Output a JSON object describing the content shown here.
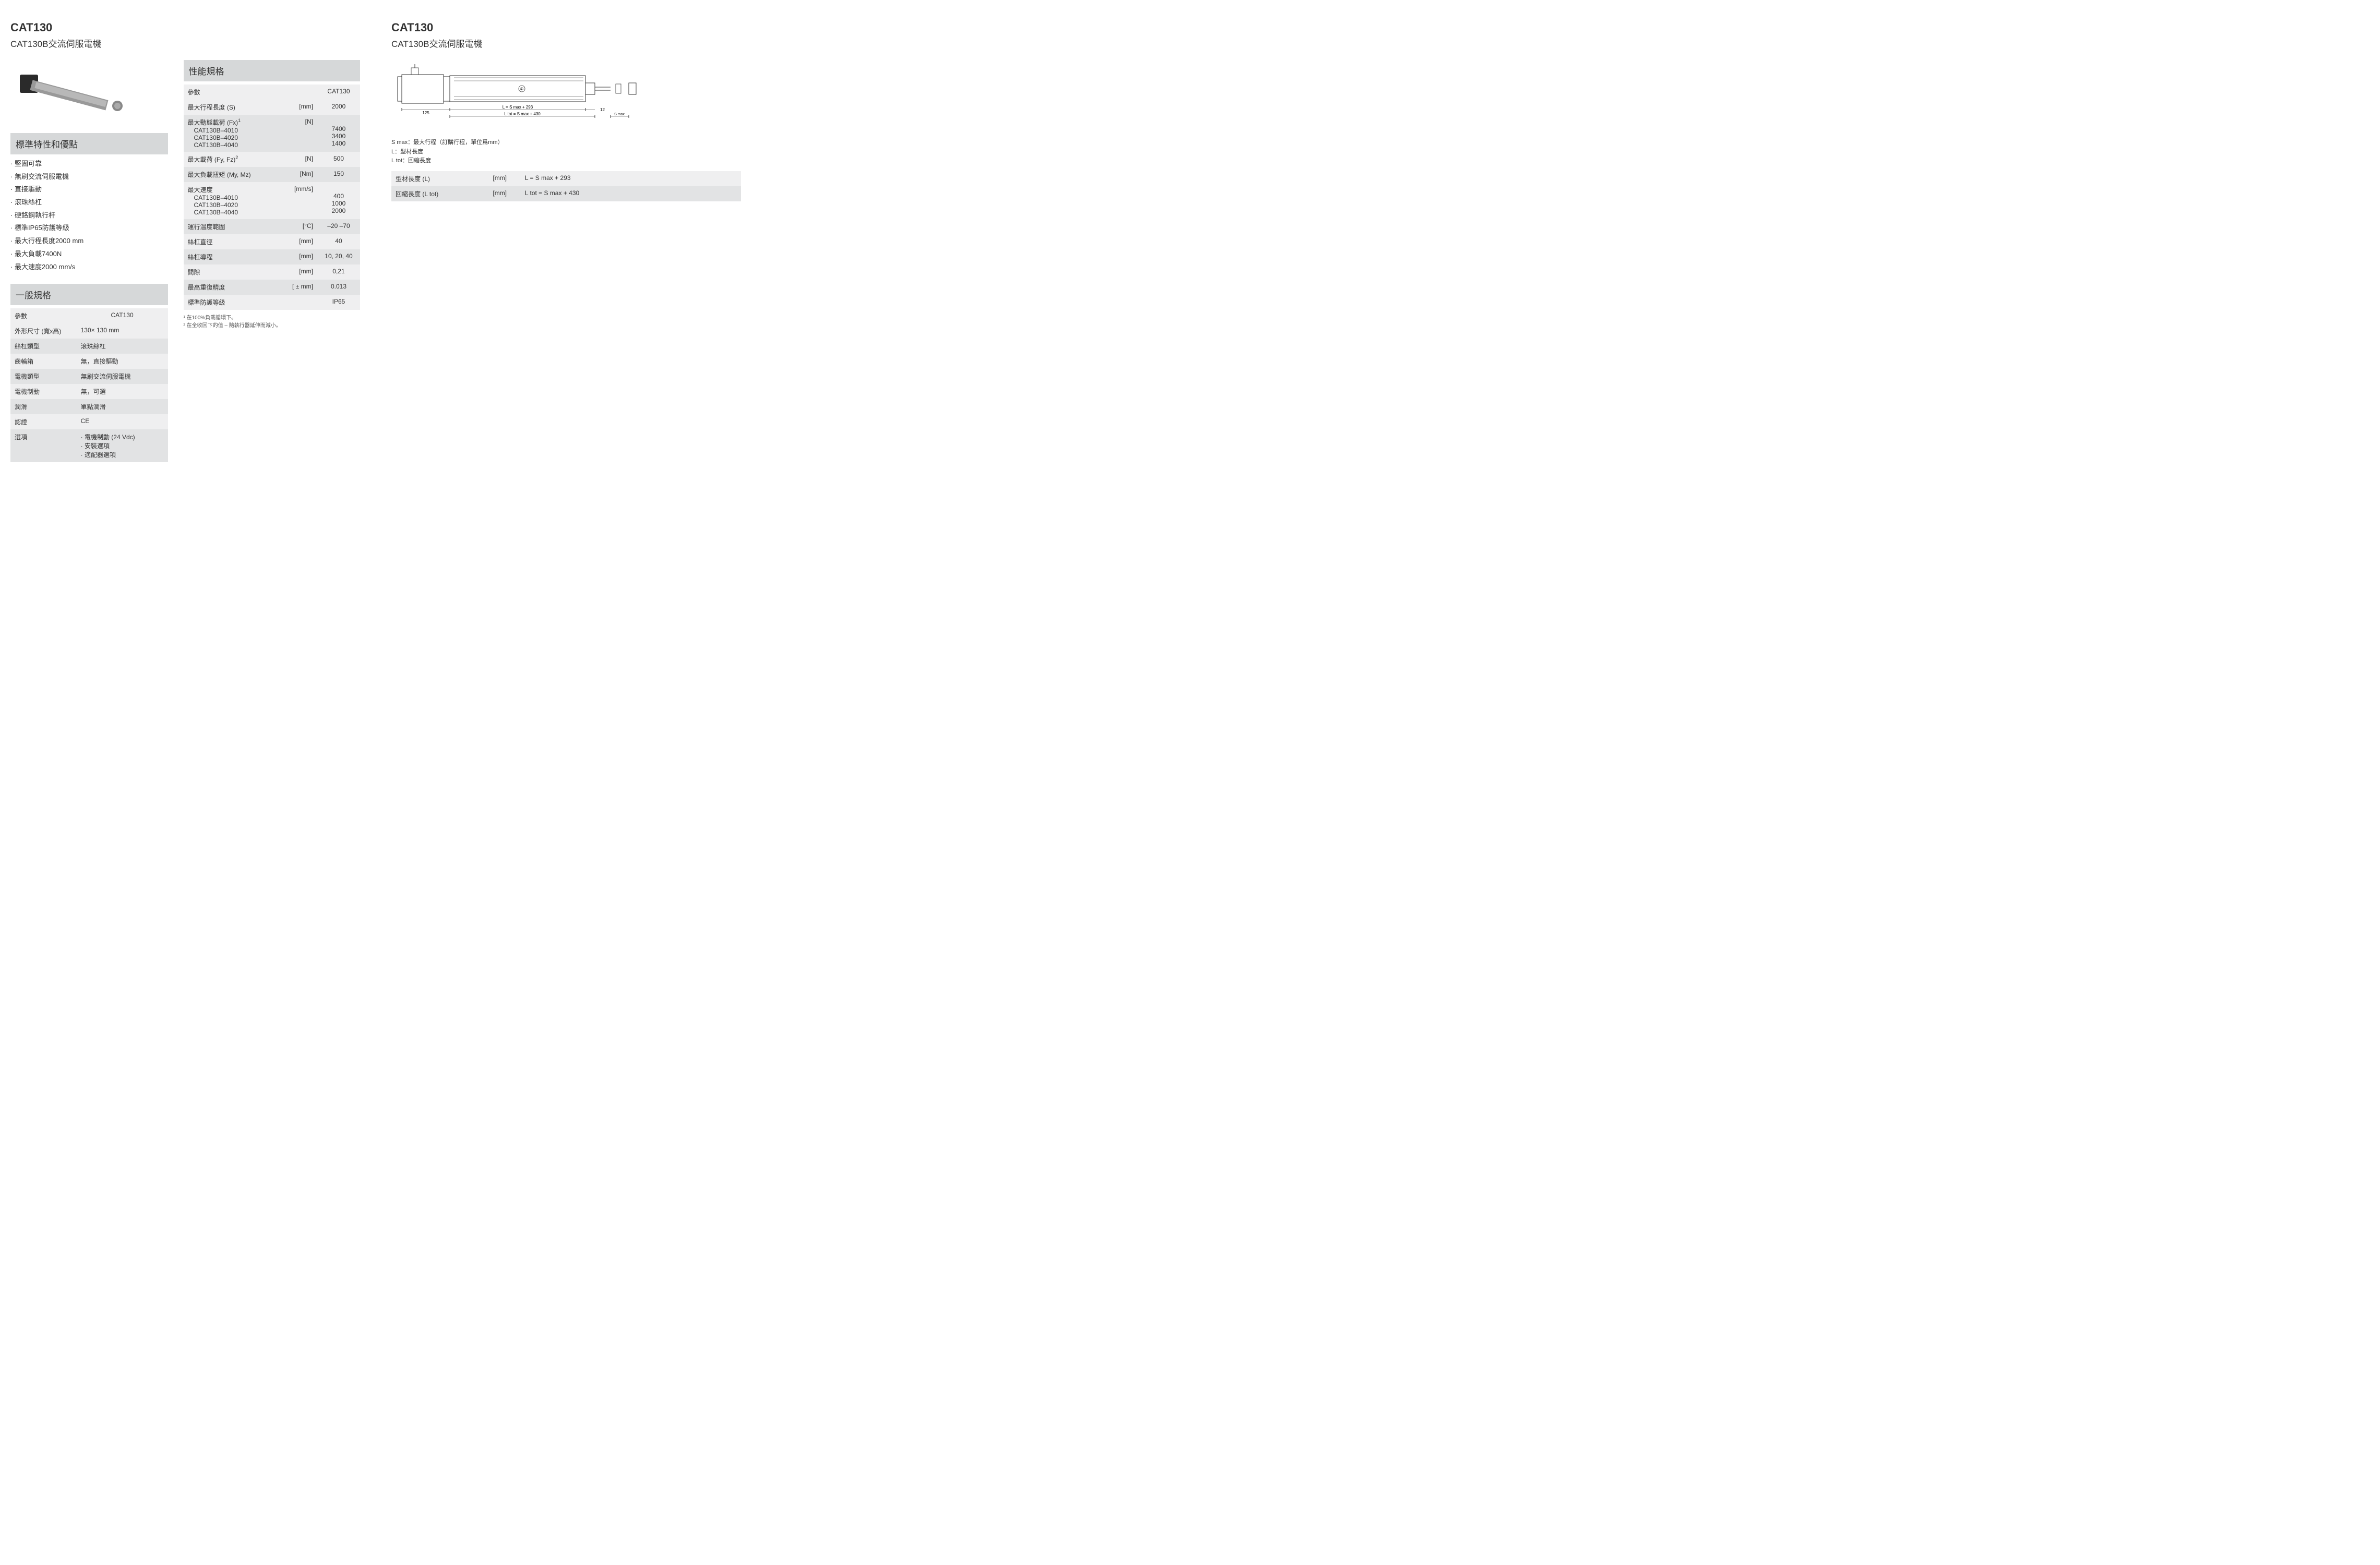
{
  "left": {
    "title": "CAT130",
    "subtitle": "CAT130B交流伺服電機",
    "features_header": "標準特性和優點",
    "features": [
      "堅固可靠",
      "無刷交流伺服電機",
      "直接驅動",
      "滾珠絲杠",
      "硬鉻鋼執行杆",
      "標準IP65防護等級",
      "最大行程長度2000 mm",
      "最大負載7400N",
      "最大速度2000 mm/s"
    ],
    "general_header": "一般規格",
    "general_col_param": "參數",
    "general_col_val": "CAT130",
    "general_rows": [
      {
        "p": "外形尺寸 (寬x高)",
        "v": "130× 130 mm"
      },
      {
        "p": "絲杠類型",
        "v": "滾珠絲杠"
      },
      {
        "p": "齒輪箱",
        "v": "無，直接驅動"
      },
      {
        "p": "電機類型",
        "v": "無刷交流伺服電機"
      },
      {
        "p": "電機制動",
        "v": "無，可選"
      },
      {
        "p": "潤滑",
        "v": "單點潤滑"
      },
      {
        "p": "認證",
        "v": "CE"
      },
      {
        "p": "選項",
        "v": "· 電機制動 (24 Vdc)\n· 安裝選項\n· 適配器選項"
      }
    ]
  },
  "perf": {
    "header": "性能規格",
    "col_param": "參數",
    "col_val": "CAT130",
    "rows": [
      {
        "p": "最大行程長度 (S)",
        "u": "[mm]",
        "v": "2000"
      },
      {
        "p": "最大動態載荷 (Fx)¹",
        "sub": [
          "CAT130B–4010",
          "CAT130B–4020",
          "CAT130B–4040"
        ],
        "u": "[N]",
        "subv": [
          "7400",
          "3400",
          "1400"
        ]
      },
      {
        "p": "最大載荷 (Fy, Fz)²",
        "u": "[N]",
        "v": "500"
      },
      {
        "p": "最大負載扭矩 (My, Mz)",
        "u": "[Nm]",
        "v": "150"
      },
      {
        "p": "最大速度",
        "sub": [
          "CAT130B–4010",
          "CAT130B–4020",
          "CAT130B–4040"
        ],
        "u": "[mm/s]",
        "subv": [
          "400",
          "1000",
          "2000"
        ]
      },
      {
        "p": "運行溫度範圍",
        "u": "[°C]",
        "v": "–20 –70"
      },
      {
        "p": "絲杠直徑",
        "u": "[mm]",
        "v": "40"
      },
      {
        "p": "絲杠導程",
        "u": "[mm]",
        "v": "10, 20, 40"
      },
      {
        "p": "間隙",
        "u": "[mm]",
        "v": "0,21"
      },
      {
        "p": "最高重復精度",
        "u": "[ ± mm]",
        "v": "0.013"
      },
      {
        "p": "標準防護等級",
        "u": "",
        "v": "IP65"
      }
    ],
    "footnotes": [
      "¹ 在100%負載循環下。",
      "² 在全收回下的值 – 隨執行器延伸而減小。"
    ]
  },
  "right": {
    "title": "CAT130",
    "subtitle": "CAT130B交流伺服電機",
    "dim_labels": {
      "d125": "125",
      "dL": "L = S max + 293",
      "dLtot": "L tot = S max + 430",
      "d12": "12",
      "dSmax": "S max",
      "circ1": "①"
    },
    "dim_notes": [
      "S max：最大行程（訂購行程，單位爲mm）",
      "L：型材長度",
      "L tot：回縮長度"
    ],
    "dim_table": [
      {
        "p": "型材長度 (L)",
        "u": "[mm]",
        "v": "L = S max + 293"
      },
      {
        "p": "回縮長度 (L tot)",
        "u": "[mm]",
        "v": "L tot = S max + 430"
      }
    ]
  }
}
